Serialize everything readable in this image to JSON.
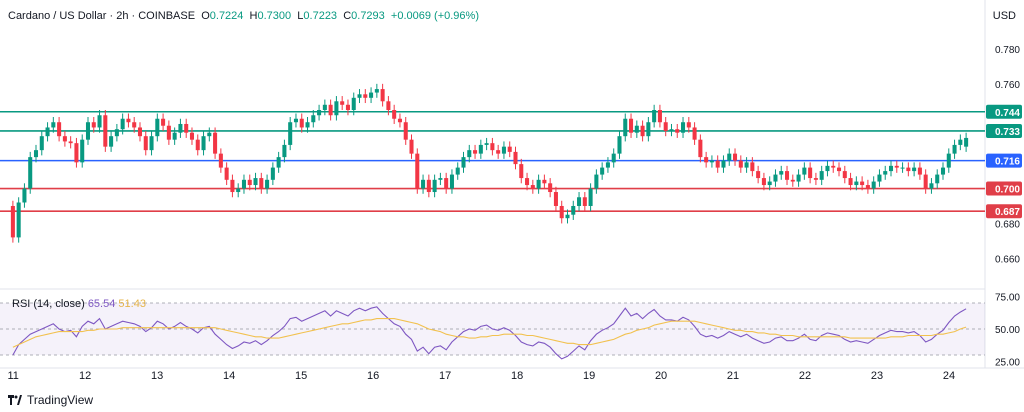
{
  "header": {
    "symbol": "Cardano / US Dollar · 2h · COINBASE",
    "o_label": "O",
    "o_value": "0.7224",
    "h_label": "H",
    "h_value": "0.7300",
    "l_label": "L",
    "l_value": "0.7223",
    "c_label": "C",
    "c_value": "0.7293",
    "change": "+0.0069 (+0.96%)"
  },
  "currency": "USD",
  "brand": "TradingView",
  "colors": {
    "up": "#089981",
    "down": "#f23645",
    "rsi": "#7e57c2",
    "rsi_ma": "#f2c14e",
    "support": "#e03e48",
    "blue_line": "#2962ff",
    "green_line": "#089981"
  },
  "chart_data": [
    {
      "type": "candlestick",
      "ylim": [
        0.643,
        0.792
      ],
      "y_ticks": [
        "0.780",
        "0.760",
        "0.680",
        "0.660"
      ],
      "x_ticks": [
        "11",
        "12",
        "13",
        "14",
        "15",
        "16",
        "17",
        "18",
        "19",
        "20",
        "21",
        "22",
        "23",
        "24"
      ],
      "x_range_days": [
        10.9,
        24.5
      ],
      "horizontal_lines": [
        {
          "label": "0.744",
          "value": 0.744,
          "color": "green"
        },
        {
          "label": "0.733",
          "value": 0.733,
          "color": "green"
        },
        {
          "label": "0.716",
          "value": 0.716,
          "color": "blue"
        },
        {
          "label": "0.700",
          "value": 0.7,
          "color": "red"
        },
        {
          "label": "0.687",
          "value": 0.687,
          "color": "red"
        }
      ],
      "closes": [
        0.672,
        0.692,
        0.7,
        0.718,
        0.722,
        0.73,
        0.735,
        0.738,
        0.73,
        0.727,
        0.726,
        0.715,
        0.728,
        0.738,
        0.735,
        0.742,
        0.724,
        0.73,
        0.734,
        0.74,
        0.738,
        0.735,
        0.73,
        0.722,
        0.73,
        0.74,
        0.736,
        0.728,
        0.732,
        0.737,
        0.732,
        0.728,
        0.722,
        0.73,
        0.732,
        0.72,
        0.712,
        0.705,
        0.698,
        0.7,
        0.705,
        0.702,
        0.706,
        0.7,
        0.705,
        0.712,
        0.718,
        0.725,
        0.738,
        0.74,
        0.735,
        0.738,
        0.742,
        0.745,
        0.748,
        0.742,
        0.75,
        0.748,
        0.745,
        0.752,
        0.754,
        0.752,
        0.755,
        0.757,
        0.75,
        0.745,
        0.74,
        0.738,
        0.728,
        0.72,
        0.7,
        0.705,
        0.698,
        0.705,
        0.706,
        0.7,
        0.708,
        0.712,
        0.718,
        0.722,
        0.72,
        0.725,
        0.726,
        0.722,
        0.72,
        0.724,
        0.721,
        0.714,
        0.706,
        0.702,
        0.7,
        0.705,
        0.703,
        0.698,
        0.69,
        0.683,
        0.685,
        0.69,
        0.695,
        0.69,
        0.7,
        0.708,
        0.712,
        0.715,
        0.72,
        0.73,
        0.74,
        0.732,
        0.736,
        0.73,
        0.738,
        0.745,
        0.738,
        0.733,
        0.734,
        0.732,
        0.738,
        0.735,
        0.728,
        0.718,
        0.715,
        0.716,
        0.712,
        0.716,
        0.72,
        0.716,
        0.712,
        0.715,
        0.71,
        0.706,
        0.702,
        0.704,
        0.708,
        0.71,
        0.705,
        0.704,
        0.708,
        0.712,
        0.706,
        0.705,
        0.71,
        0.713,
        0.712,
        0.71,
        0.706,
        0.702,
        0.704,
        0.702,
        0.7,
        0.704,
        0.708,
        0.71,
        0.713,
        0.712,
        0.712,
        0.71,
        0.712,
        0.708,
        0.7,
        0.703,
        0.708,
        0.712,
        0.72,
        0.725,
        0.728,
        0.729
      ],
      "opens": [
        0.69,
        0.672,
        0.692,
        0.7,
        0.718,
        0.722,
        0.73,
        0.735,
        0.738,
        0.73,
        0.727,
        0.726,
        0.715,
        0.728,
        0.738,
        0.735,
        0.742,
        0.724,
        0.73,
        0.734,
        0.74,
        0.738,
        0.735,
        0.73,
        0.722,
        0.73,
        0.74,
        0.736,
        0.728,
        0.732,
        0.737,
        0.732,
        0.728,
        0.722,
        0.73,
        0.732,
        0.72,
        0.712,
        0.705,
        0.698,
        0.7,
        0.705,
        0.702,
        0.706,
        0.7,
        0.705,
        0.712,
        0.718,
        0.725,
        0.738,
        0.74,
        0.735,
        0.738,
        0.742,
        0.745,
        0.748,
        0.742,
        0.75,
        0.748,
        0.745,
        0.752,
        0.754,
        0.752,
        0.755,
        0.757,
        0.75,
        0.745,
        0.74,
        0.738,
        0.728,
        0.72,
        0.7,
        0.705,
        0.698,
        0.705,
        0.706,
        0.7,
        0.708,
        0.712,
        0.718,
        0.722,
        0.72,
        0.725,
        0.726,
        0.722,
        0.72,
        0.724,
        0.721,
        0.714,
        0.706,
        0.702,
        0.7,
        0.705,
        0.703,
        0.698,
        0.69,
        0.683,
        0.685,
        0.69,
        0.695,
        0.69,
        0.7,
        0.708,
        0.712,
        0.715,
        0.72,
        0.73,
        0.74,
        0.732,
        0.736,
        0.73,
        0.738,
        0.745,
        0.738,
        0.733,
        0.734,
        0.732,
        0.738,
        0.735,
        0.728,
        0.718,
        0.715,
        0.716,
        0.712,
        0.716,
        0.72,
        0.716,
        0.712,
        0.715,
        0.71,
        0.706,
        0.702,
        0.704,
        0.708,
        0.71,
        0.705,
        0.704,
        0.708,
        0.712,
        0.706,
        0.705,
        0.71,
        0.713,
        0.712,
        0.71,
        0.706,
        0.702,
        0.704,
        0.702,
        0.7,
        0.704,
        0.708,
        0.71,
        0.713,
        0.712,
        0.712,
        0.71,
        0.712,
        0.708,
        0.7,
        0.703,
        0.708,
        0.712,
        0.72,
        0.725,
        0.724
      ]
    },
    {
      "type": "line",
      "title": "RSI (14, close)",
      "values_label": [
        "65.54",
        "51.43"
      ],
      "ylim": [
        20,
        80
      ],
      "y_ticks": [
        "75.00",
        "50.00",
        "25.00"
      ],
      "band": [
        30,
        70
      ],
      "series": [
        {
          "name": "RSI",
          "values": [
            30,
            38,
            42,
            46,
            48,
            50,
            52,
            54,
            50,
            48,
            49,
            44,
            52,
            56,
            54,
            58,
            50,
            52,
            54,
            56,
            55,
            54,
            52,
            48,
            51,
            56,
            54,
            50,
            52,
            55,
            52,
            50,
            47,
            51,
            52,
            46,
            42,
            38,
            35,
            37,
            40,
            39,
            41,
            38,
            41,
            45,
            48,
            52,
            58,
            59,
            56,
            58,
            60,
            62,
            64,
            60,
            64,
            62,
            60,
            64,
            66,
            64,
            66,
            67,
            62,
            58,
            54,
            52,
            46,
            42,
            33,
            36,
            31,
            36,
            37,
            34,
            40,
            44,
            48,
            50,
            49,
            52,
            53,
            50,
            49,
            51,
            49,
            45,
            40,
            38,
            37,
            40,
            39,
            36,
            31,
            27,
            29,
            33,
            37,
            34,
            41,
            46,
            49,
            51,
            54,
            60,
            66,
            60,
            62,
            58,
            62,
            65,
            60,
            57,
            57,
            56,
            59,
            57,
            52,
            46,
            44,
            45,
            43,
            45,
            48,
            46,
            44,
            46,
            43,
            41,
            39,
            40,
            43,
            44,
            41,
            41,
            43,
            46,
            42,
            41,
            45,
            47,
            46,
            45,
            42,
            40,
            41,
            40,
            39,
            42,
            45,
            47,
            49,
            48,
            48,
            47,
            48,
            45,
            40,
            42,
            46,
            49,
            55,
            60,
            63,
            65.54
          ]
        },
        {
          "name": "MA",
          "values": [
            36,
            38,
            40,
            42,
            44,
            45,
            46,
            47,
            48,
            48,
            48,
            48,
            48,
            49,
            49,
            50,
            50,
            50,
            50,
            51,
            51,
            51,
            51,
            51,
            51,
            51,
            51,
            51,
            51,
            51,
            51,
            51,
            51,
            51,
            51,
            51,
            50,
            49,
            48,
            47,
            46,
            45,
            44,
            44,
            43,
            43,
            43,
            44,
            45,
            46,
            47,
            48,
            49,
            50,
            51,
            52,
            53,
            54,
            54,
            55,
            56,
            57,
            57,
            58,
            58,
            58,
            58,
            57,
            56,
            55,
            54,
            52,
            50,
            49,
            48,
            46,
            45,
            44,
            44,
            43,
            43,
            44,
            44,
            45,
            45,
            46,
            46,
            46,
            46,
            45,
            45,
            44,
            43,
            42,
            41,
            40,
            39,
            39,
            38,
            38,
            38,
            39,
            40,
            41,
            42,
            44,
            46,
            47,
            49,
            50,
            51,
            53,
            54,
            55,
            56,
            56,
            56,
            56,
            56,
            55,
            54,
            53,
            52,
            51,
            50,
            49,
            49,
            48,
            48,
            47,
            47,
            46,
            46,
            45,
            45,
            45,
            44,
            44,
            44,
            44,
            44,
            44,
            44,
            44,
            44,
            43,
            43,
            43,
            43,
            43,
            43,
            43,
            44,
            44,
            44,
            45,
            45,
            45,
            45,
            45,
            46,
            46,
            47,
            48,
            50,
            51.43
          ]
        }
      ]
    }
  ]
}
